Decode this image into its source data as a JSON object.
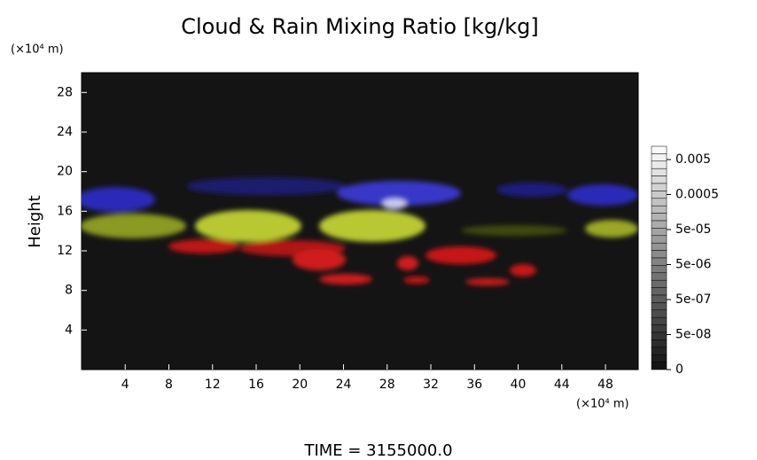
{
  "chart_data": {
    "type": "image",
    "title": "Cloud & Rain Mixing Ratio [kg/kg]",
    "y_unit": "(×10⁴ m)",
    "x_unit": "(×10⁴ m)",
    "ylabel": "Height",
    "footer": "TIME = 3155000.0",
    "xlim": [
      0,
      51
    ],
    "xticks": [
      4,
      8,
      12,
      16,
      20,
      24,
      28,
      32,
      36,
      40,
      44,
      48
    ],
    "ylim": [
      0,
      30
    ],
    "yticks": [
      4,
      8,
      12,
      16,
      20,
      24,
      28
    ],
    "colorbar_ticks": [
      0.005,
      0.0005,
      {
        "value": 5e-05,
        "label": "5e-05"
      },
      {
        "value": 5e-06,
        "label": "5e-06"
      },
      {
        "value": 5e-07,
        "label": "5e-07"
      },
      {
        "value": 5e-08,
        "label": "5e-08"
      },
      0
    ]
  }
}
